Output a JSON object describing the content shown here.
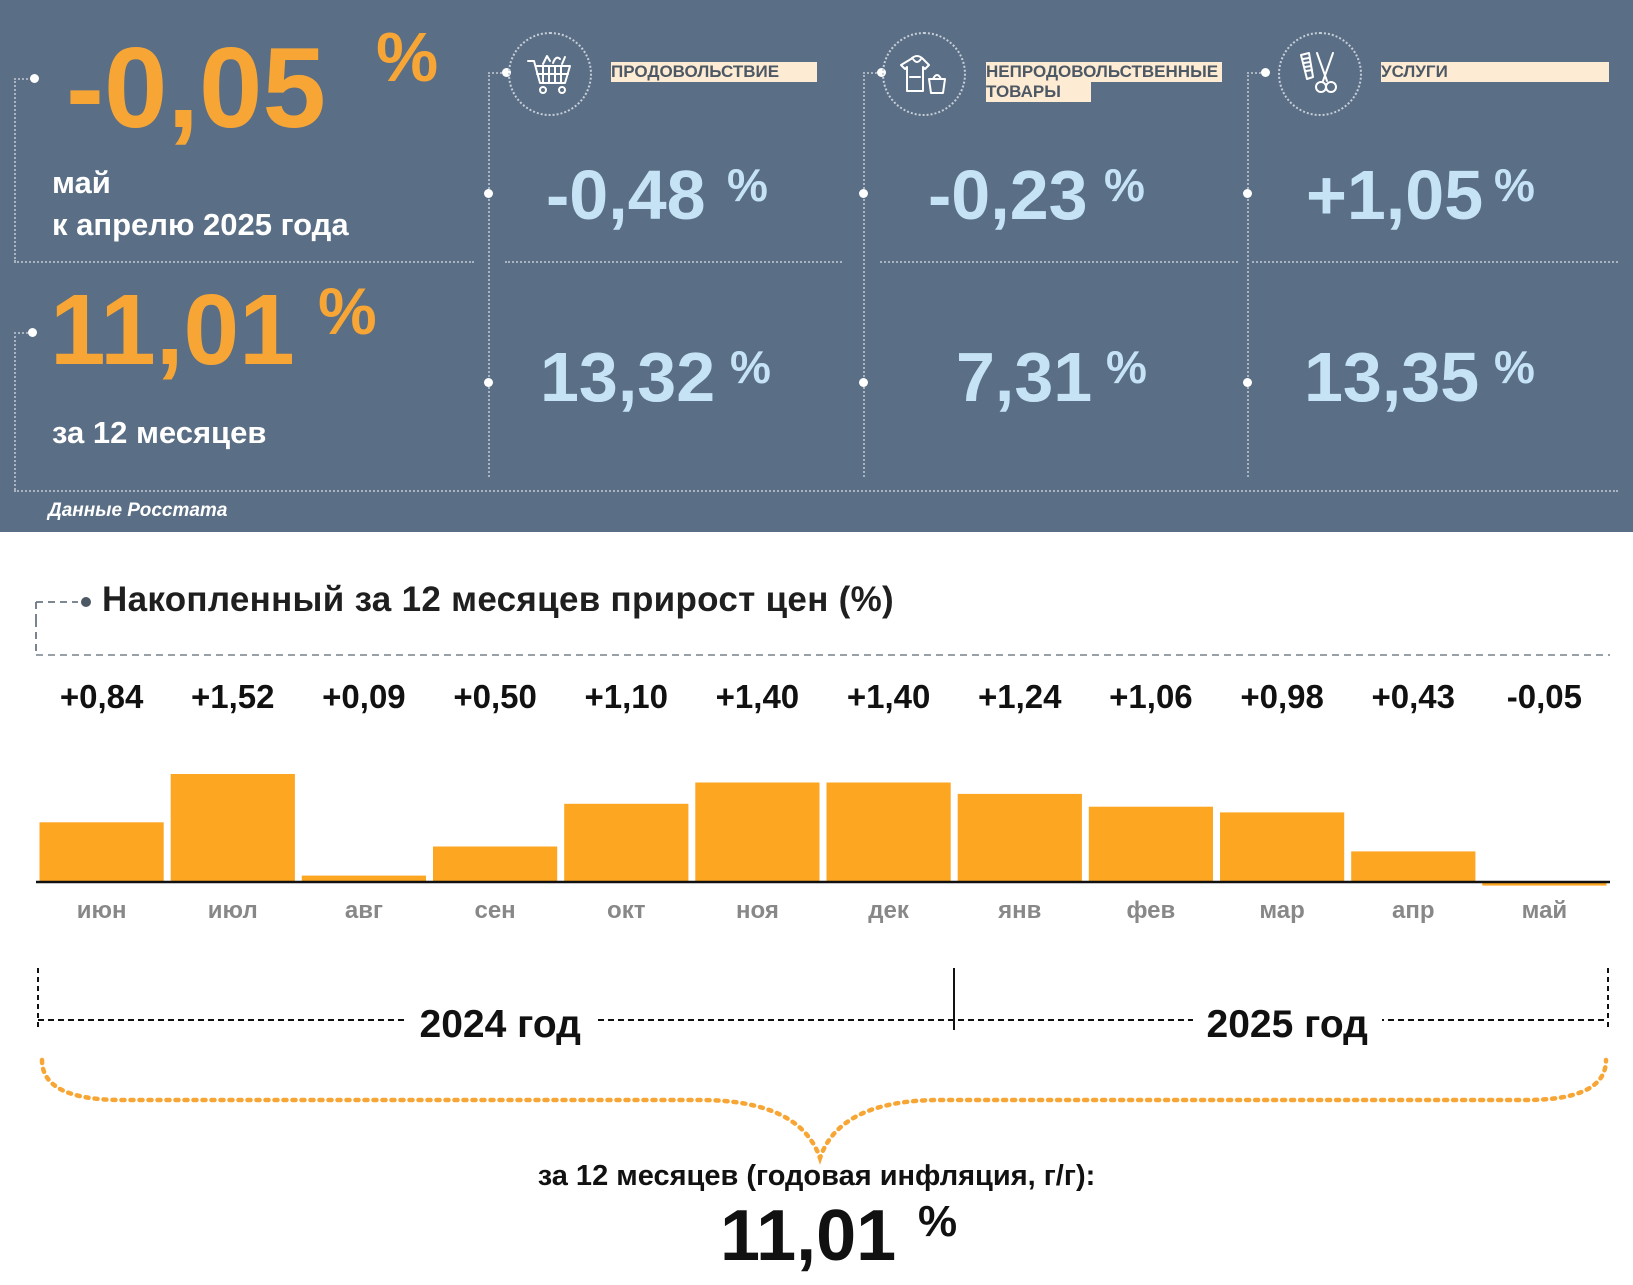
{
  "header": {
    "monthly": {
      "value": "-0,05",
      "unit": "%",
      "label_line1": "май",
      "label_line2": "к апрелю 2025 года"
    },
    "annual": {
      "value": "11,01",
      "unit": "%",
      "label": "за 12 месяцев"
    },
    "categories": [
      {
        "label_line1": "ПРОДОВОЛЬСТВИЕ",
        "label_line2": "",
        "icon": "shopping-cart-icon",
        "monthly": "-0,48",
        "annual": "13,32",
        "unit": "%"
      },
      {
        "label_line1": "НЕПРОДОВОЛЬСТВЕННЫЕ",
        "label_line2": "ТОВАРЫ",
        "icon": "clothes-hoodie-bag-icon",
        "monthly": "-0,23",
        "annual": "7,31",
        "unit": "%"
      },
      {
        "label_line1": "УСЛУГИ",
        "label_line2": "",
        "icon": "comb-scissors-icon",
        "monthly": "+1,05",
        "annual": "13,35",
        "unit": "%"
      }
    ],
    "source": "Данные Росстата"
  },
  "colors": {
    "panel_bg": "#5a6e85",
    "orange": "#f7a635",
    "bar": "#fca621",
    "light_blue": "#c5e3f5",
    "label_bg": "#fdebd3"
  },
  "chart_data": {
    "type": "bar",
    "title": "Накопленный за 12 месяцев прирост цен (%)",
    "categories": [
      "июн",
      "июл",
      "авг",
      "сен",
      "окт",
      "ноя",
      "дек",
      "янв",
      "фев",
      "мар",
      "апр",
      "май"
    ],
    "values": [
      0.84,
      1.52,
      0.09,
      0.5,
      1.1,
      1.4,
      1.4,
      1.24,
      1.06,
      0.98,
      0.43,
      -0.05
    ],
    "value_labels": [
      "+0,84",
      "+1,52",
      "+0,09",
      "+0,50",
      "+1,10",
      "+1,40",
      "+1,40",
      "+1,24",
      "+1,06",
      "+0,98",
      "+0,43",
      "-0,05"
    ],
    "ylim": [
      -0.05,
      1.52
    ],
    "years": [
      {
        "label": "2024 год",
        "months": 7
      },
      {
        "label": "2025 год",
        "months": 5
      }
    ],
    "total_caption": "за 12 месяцев (годовая инфляция, г/г):",
    "total_value": "11,01",
    "total_unit": "%"
  }
}
